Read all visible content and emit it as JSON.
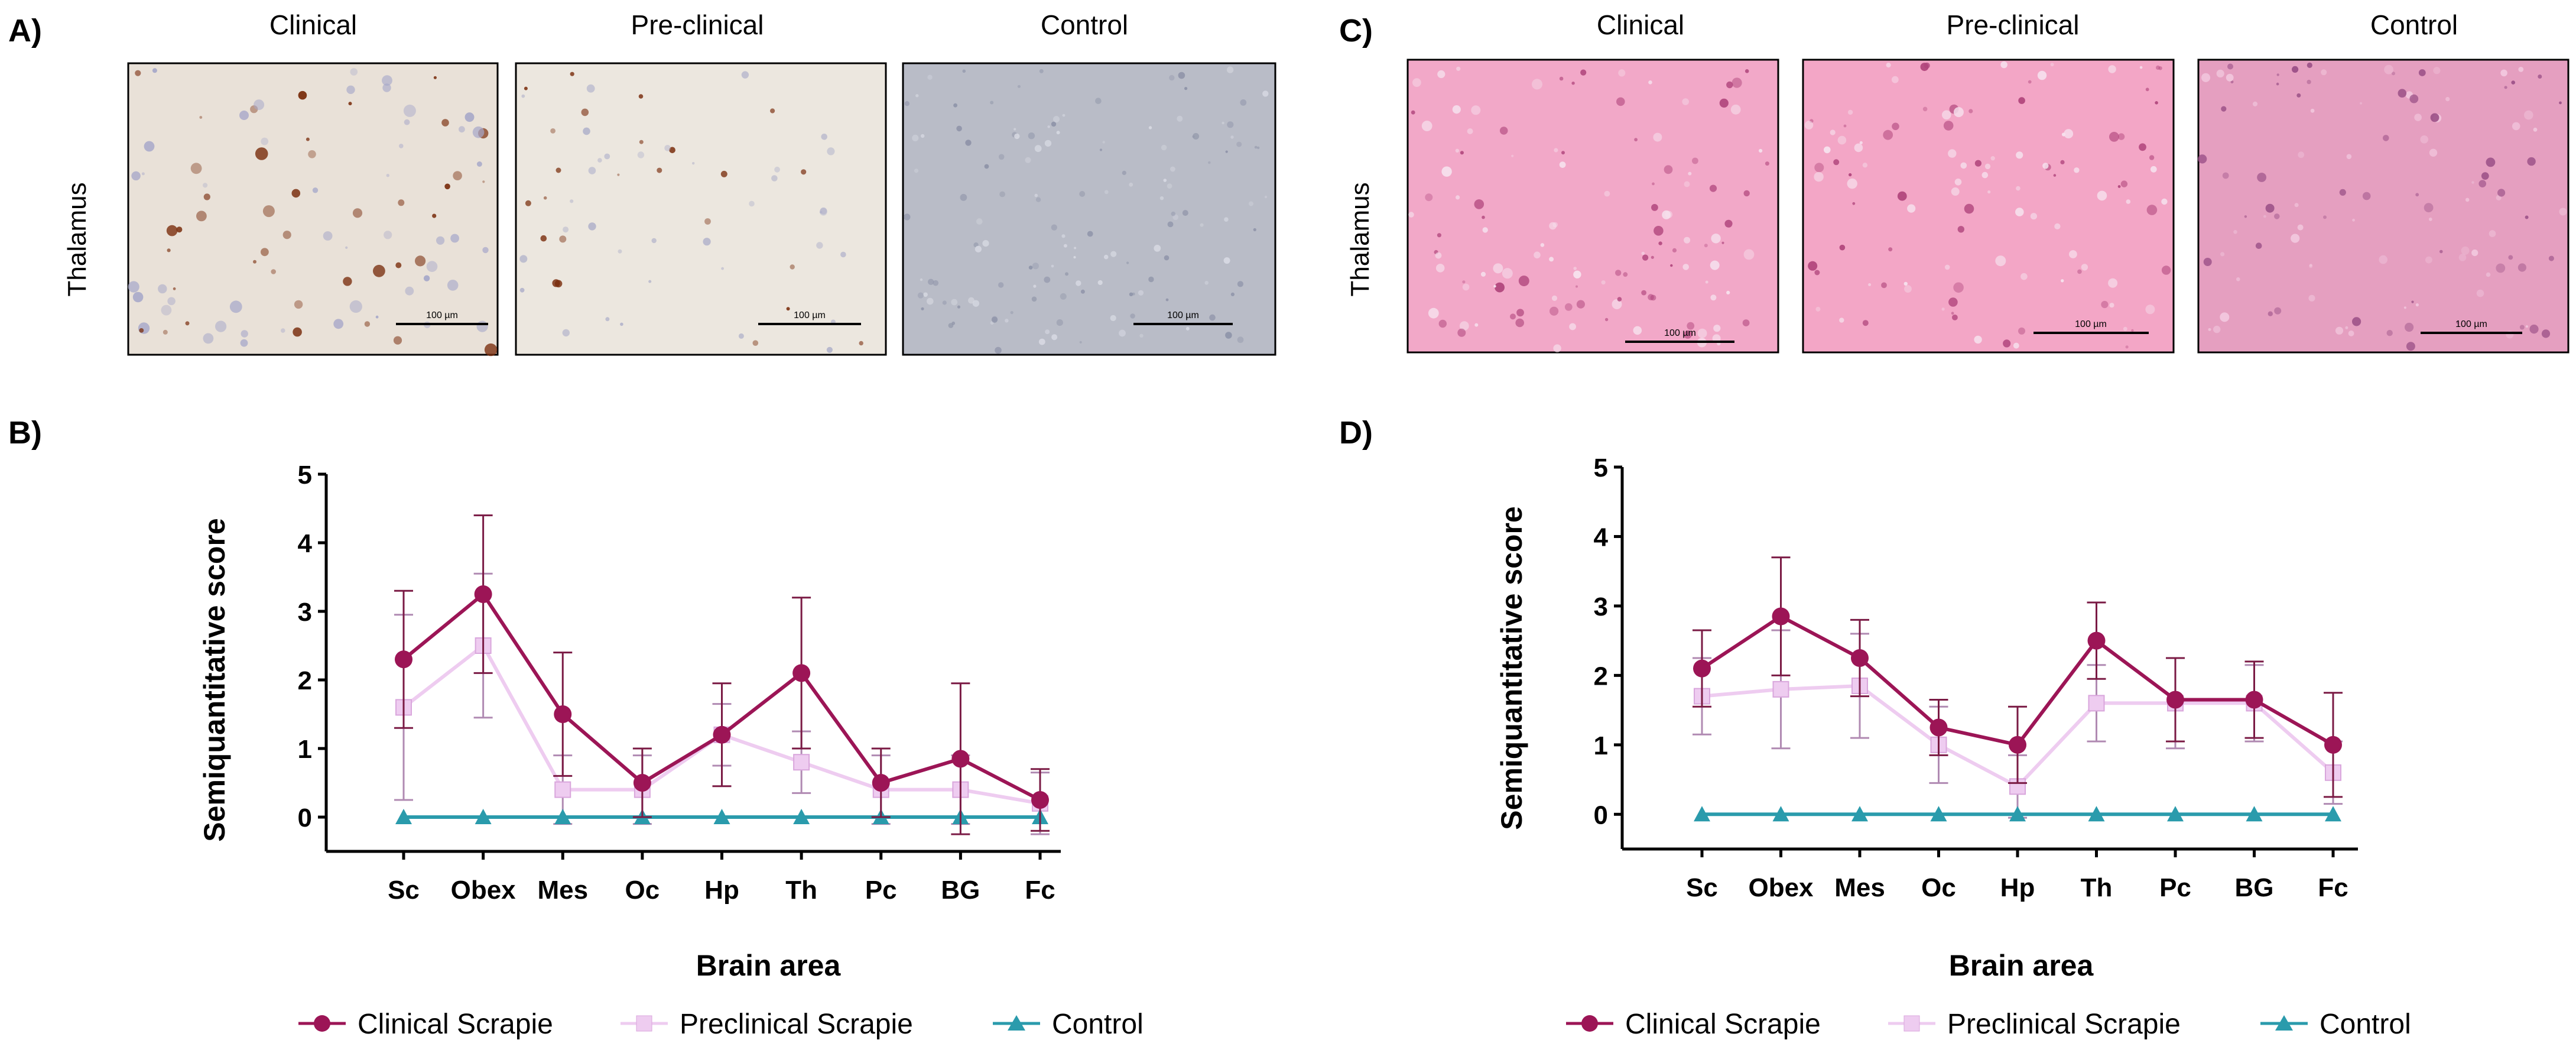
{
  "panels": {
    "A": {
      "letter": "A)",
      "row_label": "Thalamus",
      "columns": [
        "Clinical",
        "Pre-clinical",
        "Control"
      ],
      "scale_bar_label": "100 µm",
      "stain_colors": [
        "#e9e1d8",
        "#ece7df",
        "#b9bcc7"
      ],
      "spot_color": "#7a2e0e"
    },
    "C": {
      "letter": "C)",
      "row_label": "Thalamus",
      "columns": [
        "Clinical",
        "Pre-clinical",
        "Control"
      ],
      "scale_bar_label": "100 µm",
      "stain_colors": [
        "#f2a8c8",
        "#f3a6c6",
        "#e59fc0"
      ],
      "spot_color": "#b0457c"
    }
  },
  "chart_data": [
    {
      "panel": "B",
      "letter": "B)",
      "type": "line",
      "ylabel": "Semiquantitative score",
      "xlabel": "Brain area",
      "ylim": [
        -0.5,
        5
      ],
      "yticks": [
        0,
        1,
        2,
        3,
        4,
        5
      ],
      "categories": [
        "Sc",
        "Obex",
        "Mes",
        "Oc",
        "Hp",
        "Th",
        "Pc",
        "BG",
        "Fc"
      ],
      "series": [
        {
          "name": "Clinical Scrapie",
          "marker": "circle",
          "color": "#9c1556",
          "values": [
            2.3,
            3.25,
            1.5,
            0.5,
            1.2,
            2.1,
            0.5,
            0.85,
            0.25
          ],
          "errors": [
            1.0,
            1.15,
            0.9,
            0.5,
            0.75,
            1.1,
            0.5,
            1.1,
            0.45
          ]
        },
        {
          "name": "Preclinical Scrapie",
          "marker": "square",
          "color": "#eeccf0",
          "values": [
            1.6,
            2.5,
            0.4,
            0.4,
            1.2,
            0.8,
            0.4,
            0.4,
            0.2
          ],
          "errors": [
            1.35,
            1.05,
            0.5,
            0.5,
            0.45,
            0.45,
            0.5,
            0.5,
            0.45
          ]
        },
        {
          "name": "Control",
          "marker": "triangle",
          "color": "#2a9bac",
          "values": [
            0,
            0,
            0,
            0,
            0,
            0,
            0,
            0,
            0
          ],
          "errors": [
            0,
            0,
            0,
            0,
            0,
            0,
            0,
            0,
            0
          ]
        }
      ]
    },
    {
      "panel": "D",
      "letter": "D)",
      "type": "line",
      "ylabel": "Semiquantitative score",
      "xlabel": "Brain area",
      "ylim": [
        -0.5,
        5
      ],
      "yticks": [
        0,
        1,
        2,
        3,
        4,
        5
      ],
      "categories": [
        "Sc",
        "Obex",
        "Mes",
        "Oc",
        "Hp",
        "Th",
        "Pc",
        "BG",
        "Fc"
      ],
      "series": [
        {
          "name": "Clinical Scrapie",
          "marker": "circle",
          "color": "#9c1556",
          "values": [
            2.1,
            2.85,
            2.25,
            1.25,
            1.0,
            2.5,
            1.65,
            1.65,
            1.0
          ],
          "errors": [
            0.55,
            0.85,
            0.55,
            0.4,
            0.55,
            0.55,
            0.6,
            0.55,
            0.75
          ]
        },
        {
          "name": "Preclinical Scrapie",
          "marker": "square",
          "color": "#eeccf0",
          "values": [
            1.7,
            1.8,
            1.85,
            1.0,
            0.4,
            1.6,
            1.6,
            1.6,
            0.6
          ],
          "errors": [
            0.55,
            0.85,
            0.75,
            0.55,
            0.45,
            0.55,
            0.65,
            0.55,
            0.45
          ]
        },
        {
          "name": "Control",
          "marker": "triangle",
          "color": "#2a9bac",
          "values": [
            0,
            0,
            0,
            0,
            0,
            0,
            0,
            0,
            0
          ],
          "errors": [
            0,
            0,
            0,
            0,
            0,
            0,
            0,
            0,
            0
          ]
        }
      ]
    }
  ]
}
